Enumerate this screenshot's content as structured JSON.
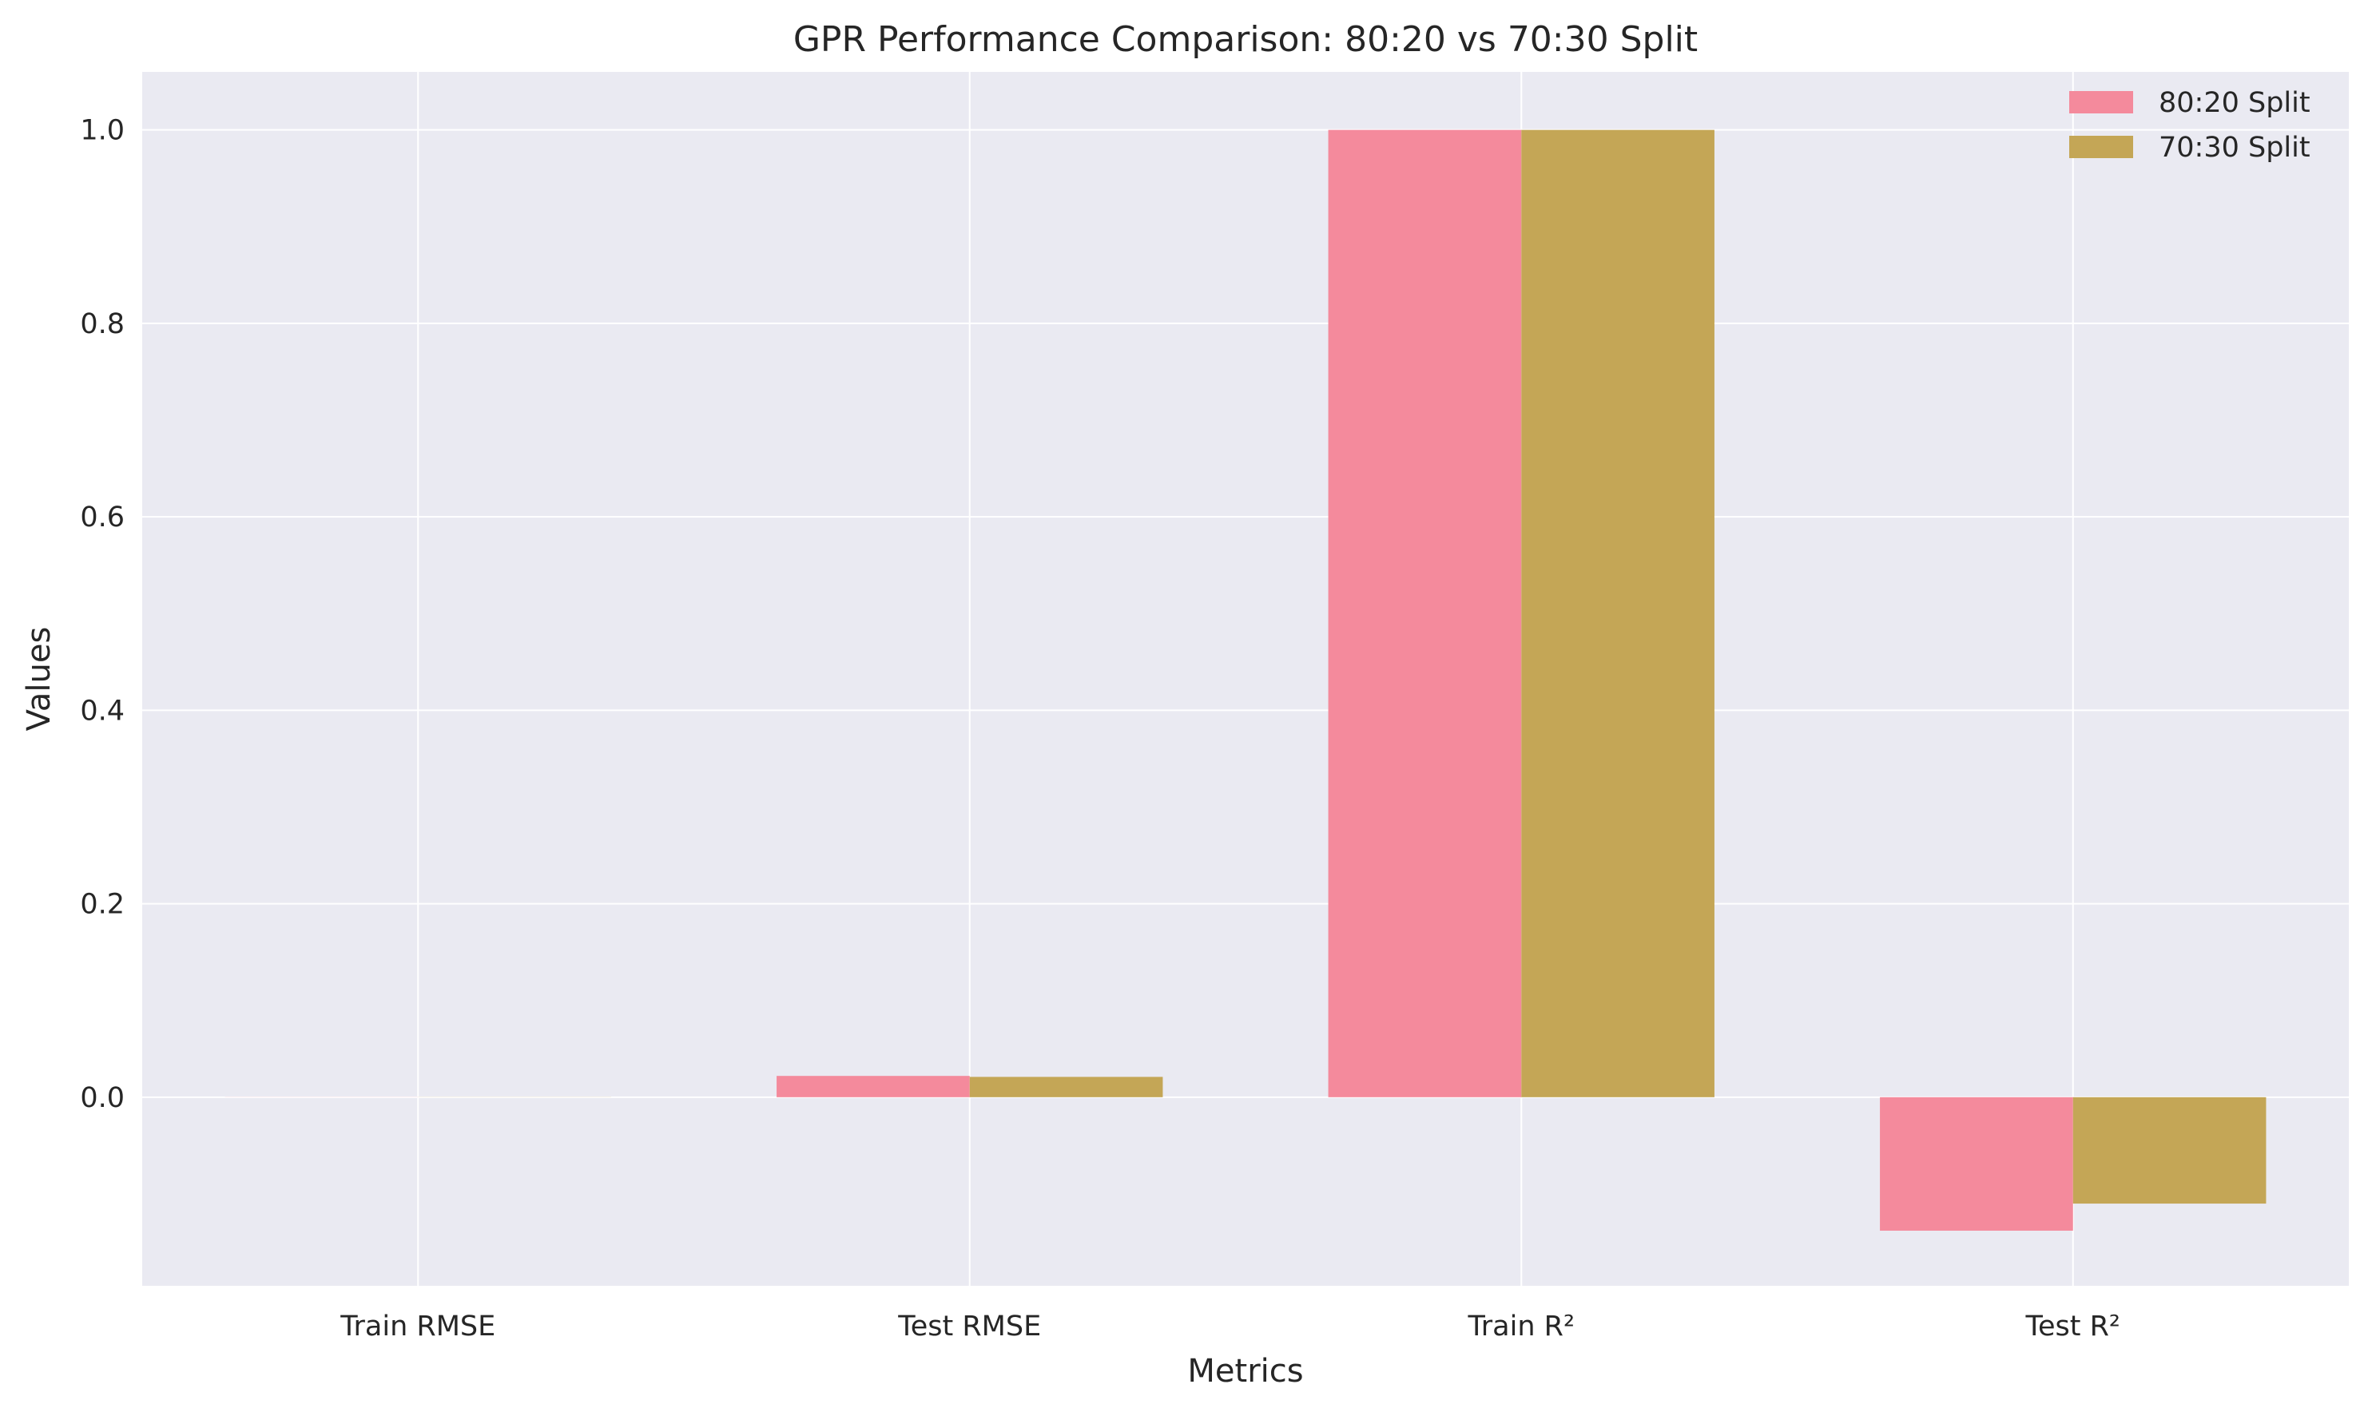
{
  "chart_data": {
    "type": "bar",
    "title": "GPR Performance Comparison: 80:20 vs 70:30 Split",
    "xlabel": "Metrics",
    "ylabel": "Values",
    "categories": [
      "Train RMSE",
      "Test RMSE",
      "Train R²",
      "Test R²"
    ],
    "series": [
      {
        "name": "80:20 Split",
        "color": "#f48a9c",
        "values": [
          0.0001,
          0.022,
          1.0,
          -0.138
        ]
      },
      {
        "name": "70:30 Split",
        "color": "#c4a656",
        "values": [
          0.0001,
          0.021,
          1.0,
          -0.11
        ]
      }
    ],
    "ylim": [
      -0.195,
      1.06
    ],
    "yticks": [
      "0.0",
      "0.2",
      "0.4",
      "0.6",
      "0.8",
      "1.0"
    ],
    "grid": true,
    "legend_position": "top-right",
    "plot_background": "#eaeaf2"
  }
}
